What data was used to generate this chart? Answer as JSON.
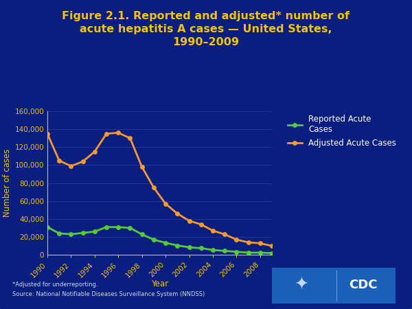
{
  "years": [
    1990,
    1991,
    1992,
    1993,
    1994,
    1995,
    1996,
    1997,
    1998,
    1999,
    2000,
    2001,
    2002,
    2003,
    2004,
    2005,
    2006,
    2007,
    2008,
    2009
  ],
  "reported": [
    31000,
    24000,
    23000,
    24500,
    26000,
    31000,
    31000,
    30000,
    23000,
    17000,
    13500,
    10500,
    8500,
    7500,
    5500,
    4500,
    3500,
    2500,
    2500,
    2000
  ],
  "adjusted": [
    135000,
    105000,
    99000,
    104000,
    115000,
    135000,
    136000,
    130000,
    98000,
    75000,
    57000,
    46000,
    38000,
    34000,
    27000,
    23000,
    17000,
    14000,
    13000,
    10000
  ],
  "background_color": "#0d2590",
  "outer_bg_color": "#1040c8",
  "inner_bg_color": "#0a1e80",
  "title_line1": "Figure 2.1. Reported and adjusted* number of",
  "title_line2": "acute hepatitis A cases — United States,",
  "title_line3": "1990–2009",
  "title_color": "#f5c400",
  "xlabel": "Year",
  "ylabel": "Number of cases",
  "label_color": "#f5c400",
  "tick_color": "#f5c400",
  "reported_color": "#55cc33",
  "adjusted_color": "#f59a30",
  "reported_label": "Reported Acute\nCases",
  "adjusted_label": "Adjusted Acute Cases",
  "legend_text_color": "#ffffff",
  "footnote1": "*Adjusted for underreporting.",
  "footnote2": "Source: National Notifiable Diseases Surveillance System (NNDSS)",
  "ylim": [
    0,
    160000
  ],
  "yticks": [
    0,
    20000,
    40000,
    60000,
    80000,
    100000,
    120000,
    140000,
    160000
  ]
}
